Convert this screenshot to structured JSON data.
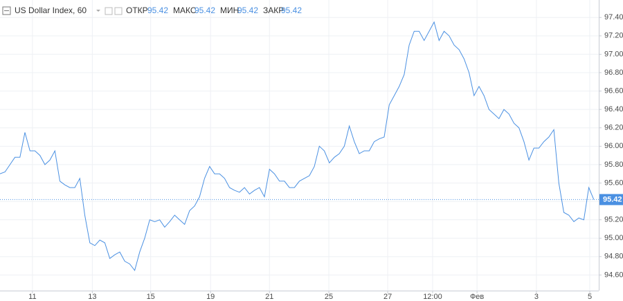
{
  "header": {
    "title": "US Dollar Index, 60",
    "stats": [
      {
        "label": "ОТКР",
        "value": 95.42
      },
      {
        "label": "МАКС",
        "value": 95.42
      },
      {
        "label": "МИН",
        "value": 95.42
      },
      {
        "label": "ЗАКР",
        "value": 95.42
      }
    ]
  },
  "chart_data": {
    "type": "line",
    "color": "#4a90e2",
    "grid": true,
    "last_value": 95.42,
    "x": [
      0,
      1,
      2,
      3,
      4,
      5,
      6,
      7,
      8,
      9,
      10,
      11,
      12,
      13,
      14,
      15,
      16,
      17,
      18,
      19,
      20,
      21,
      22,
      23,
      24,
      25,
      26,
      27,
      28,
      29,
      30,
      31,
      32,
      33,
      34,
      35,
      36,
      37,
      38,
      39,
      40,
      41,
      42,
      43,
      44,
      45,
      46,
      47,
      48,
      49,
      50,
      51,
      52,
      53,
      54,
      55,
      56,
      57,
      58,
      59,
      60,
      61,
      62,
      63,
      64,
      65,
      66,
      67,
      68,
      69,
      70,
      71,
      72,
      73,
      74,
      75,
      76,
      77,
      78,
      79,
      80,
      81,
      82,
      83,
      84,
      85,
      86,
      87,
      88,
      89,
      90,
      91,
      92,
      93,
      94,
      95,
      96,
      97,
      98,
      99,
      100,
      101,
      102,
      103,
      104,
      105,
      106,
      107,
      108,
      109,
      110,
      111,
      112,
      113,
      114,
      115,
      116,
      117,
      118,
      119
    ],
    "series": [
      {
        "name": "US Dollar Index",
        "color": "#4a90e2",
        "values": [
          95.7,
          95.72,
          95.8,
          95.88,
          95.88,
          96.15,
          95.95,
          95.95,
          95.9,
          95.8,
          95.85,
          95.95,
          95.62,
          95.58,
          95.55,
          95.55,
          95.65,
          95.25,
          94.95,
          94.92,
          94.98,
          94.95,
          94.78,
          94.82,
          94.85,
          94.75,
          94.72,
          94.65,
          94.85,
          95.0,
          95.2,
          95.18,
          95.2,
          95.12,
          95.18,
          95.25,
          95.2,
          95.15,
          95.3,
          95.35,
          95.45,
          95.65,
          95.78,
          95.7,
          95.7,
          95.65,
          95.55,
          95.52,
          95.5,
          95.55,
          95.48,
          95.52,
          95.55,
          95.45,
          95.75,
          95.7,
          95.62,
          95.62,
          95.55,
          95.55,
          95.62,
          95.65,
          95.68,
          95.78,
          96.0,
          95.95,
          95.82,
          95.88,
          95.92,
          96.0,
          96.22,
          96.05,
          95.92,
          95.95,
          95.95,
          96.05,
          96.08,
          96.1,
          96.45,
          96.55,
          96.65,
          96.78,
          97.1,
          97.25,
          97.25,
          97.15,
          97.25,
          97.35,
          97.15,
          97.25,
          97.2,
          97.1,
          97.05,
          96.95,
          96.8,
          96.55,
          96.65,
          96.55,
          96.4,
          96.35,
          96.3,
          96.4,
          96.35,
          96.25,
          96.2,
          96.05,
          95.85,
          95.98,
          95.98,
          96.05,
          96.1,
          96.18,
          95.6,
          95.28,
          95.25,
          95.18,
          95.22,
          95.2,
          95.55,
          95.42
        ]
      }
    ],
    "xlim": [
      0,
      120
    ],
    "xticks": [
      {
        "value": 6.5,
        "label": "11"
      },
      {
        "value": 18.5,
        "label": "13"
      },
      {
        "value": 30.2,
        "label": "15"
      },
      {
        "value": 42.2,
        "label": "19"
      },
      {
        "value": 54,
        "label": "21"
      },
      {
        "value": 65.9,
        "label": "25"
      },
      {
        "value": 77.7,
        "label": "27"
      },
      {
        "value": 86.7,
        "label": "12:00"
      },
      {
        "value": 95.6,
        "label": "Фев"
      },
      {
        "value": 107.5,
        "label": "3"
      },
      {
        "value": 118.2,
        "label": "5"
      }
    ],
    "ylim": [
      94.43,
      97.59
    ],
    "yticks": [
      {
        "value": 94.6,
        "label": "94.60"
      },
      {
        "value": 94.8,
        "label": "94.80"
      },
      {
        "value": 95.0,
        "label": "95.00"
      },
      {
        "value": 95.2,
        "label": "95.20"
      },
      {
        "value": 95.4,
        "label": "95.40"
      },
      {
        "value": 95.6,
        "label": "95.60"
      },
      {
        "value": 95.8,
        "label": "95.80"
      },
      {
        "value": 96.0,
        "label": "96.00"
      },
      {
        "value": 96.2,
        "label": "96.20"
      },
      {
        "value": 96.4,
        "label": "96.40"
      },
      {
        "value": 96.6,
        "label": "96.60"
      },
      {
        "value": 96.8,
        "label": "96.80"
      },
      {
        "value": 97.0,
        "label": "97.00"
      },
      {
        "value": 97.2,
        "label": "97.20"
      },
      {
        "value": 97.4,
        "label": "97.40"
      }
    ]
  }
}
